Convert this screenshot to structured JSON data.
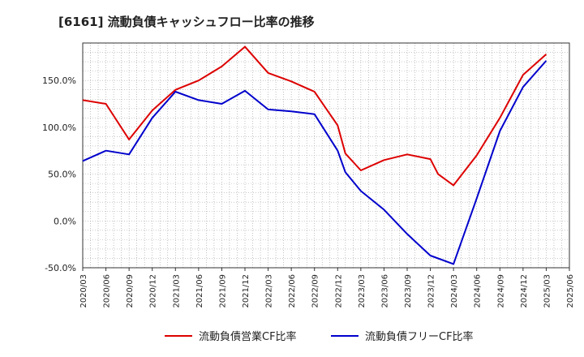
{
  "title": "[6161]  流動負債キャッシュフロー比率の推移",
  "chart_data": {
    "type": "line",
    "x": [
      "2020/03",
      "2020/06",
      "2020/09",
      "2020/12",
      "2021/03",
      "2021/06",
      "2021/09",
      "2021/12",
      "2022/03",
      "2022/06",
      "2022/09",
      "2022/12",
      "2023/03",
      "2023/06",
      "2023/09",
      "2023/12",
      "2024/03",
      "2024/06",
      "2024/09",
      "2024/12",
      "2025/03",
      "2025/06"
    ],
    "ylim": [
      -50,
      190
    ],
    "yticks": [
      -50,
      0,
      50,
      100,
      150
    ],
    "ytick_labels": [
      "-50.0%",
      "0.0%",
      "50.0%",
      "100.0%",
      "150.0%"
    ],
    "grid": true,
    "legend_position": "bottom",
    "series": [
      {
        "name": "流動負債営業CF比率",
        "color": "#dd0000",
        "points": [
          [
            "2020/03",
            129
          ],
          [
            "2020/06",
            125
          ],
          [
            "2020/09",
            87
          ],
          [
            "2020/12",
            118
          ],
          [
            "2021/03",
            140
          ],
          [
            "2021/06",
            150
          ],
          [
            "2021/09",
            165
          ],
          [
            "2021/12",
            186
          ],
          [
            "2022/03",
            158
          ],
          [
            "2022/06",
            149
          ],
          [
            "2022/09",
            138
          ],
          [
            "2022/12",
            102
          ],
          [
            "2023/01",
            72
          ],
          [
            "2023/03",
            54
          ],
          [
            "2023/06",
            65
          ],
          [
            "2023/09",
            71
          ],
          [
            "2023/12",
            66
          ],
          [
            "2024/01",
            50
          ],
          [
            "2024/03",
            38
          ],
          [
            "2024/06",
            70
          ],
          [
            "2024/09",
            110
          ],
          [
            "2024/12",
            156
          ],
          [
            "2025/03",
            178
          ]
        ]
      },
      {
        "name": "流動負債フリーCF比率",
        "color": "#0000cc",
        "points": [
          [
            "2020/03",
            64
          ],
          [
            "2020/06",
            75
          ],
          [
            "2020/09",
            71
          ],
          [
            "2020/12",
            110
          ],
          [
            "2021/03",
            138
          ],
          [
            "2021/06",
            129
          ],
          [
            "2021/09",
            125
          ],
          [
            "2021/12",
            139
          ],
          [
            "2022/03",
            119
          ],
          [
            "2022/06",
            117
          ],
          [
            "2022/09",
            114
          ],
          [
            "2022/12",
            75
          ],
          [
            "2023/01",
            52
          ],
          [
            "2023/03",
            32
          ],
          [
            "2023/06",
            12
          ],
          [
            "2023/09",
            -14
          ],
          [
            "2023/12",
            -37
          ],
          [
            "2024/03",
            -46
          ],
          [
            "2024/06",
            24
          ],
          [
            "2024/09",
            96
          ],
          [
            "2024/12",
            143
          ],
          [
            "2025/03",
            171
          ]
        ]
      }
    ]
  }
}
